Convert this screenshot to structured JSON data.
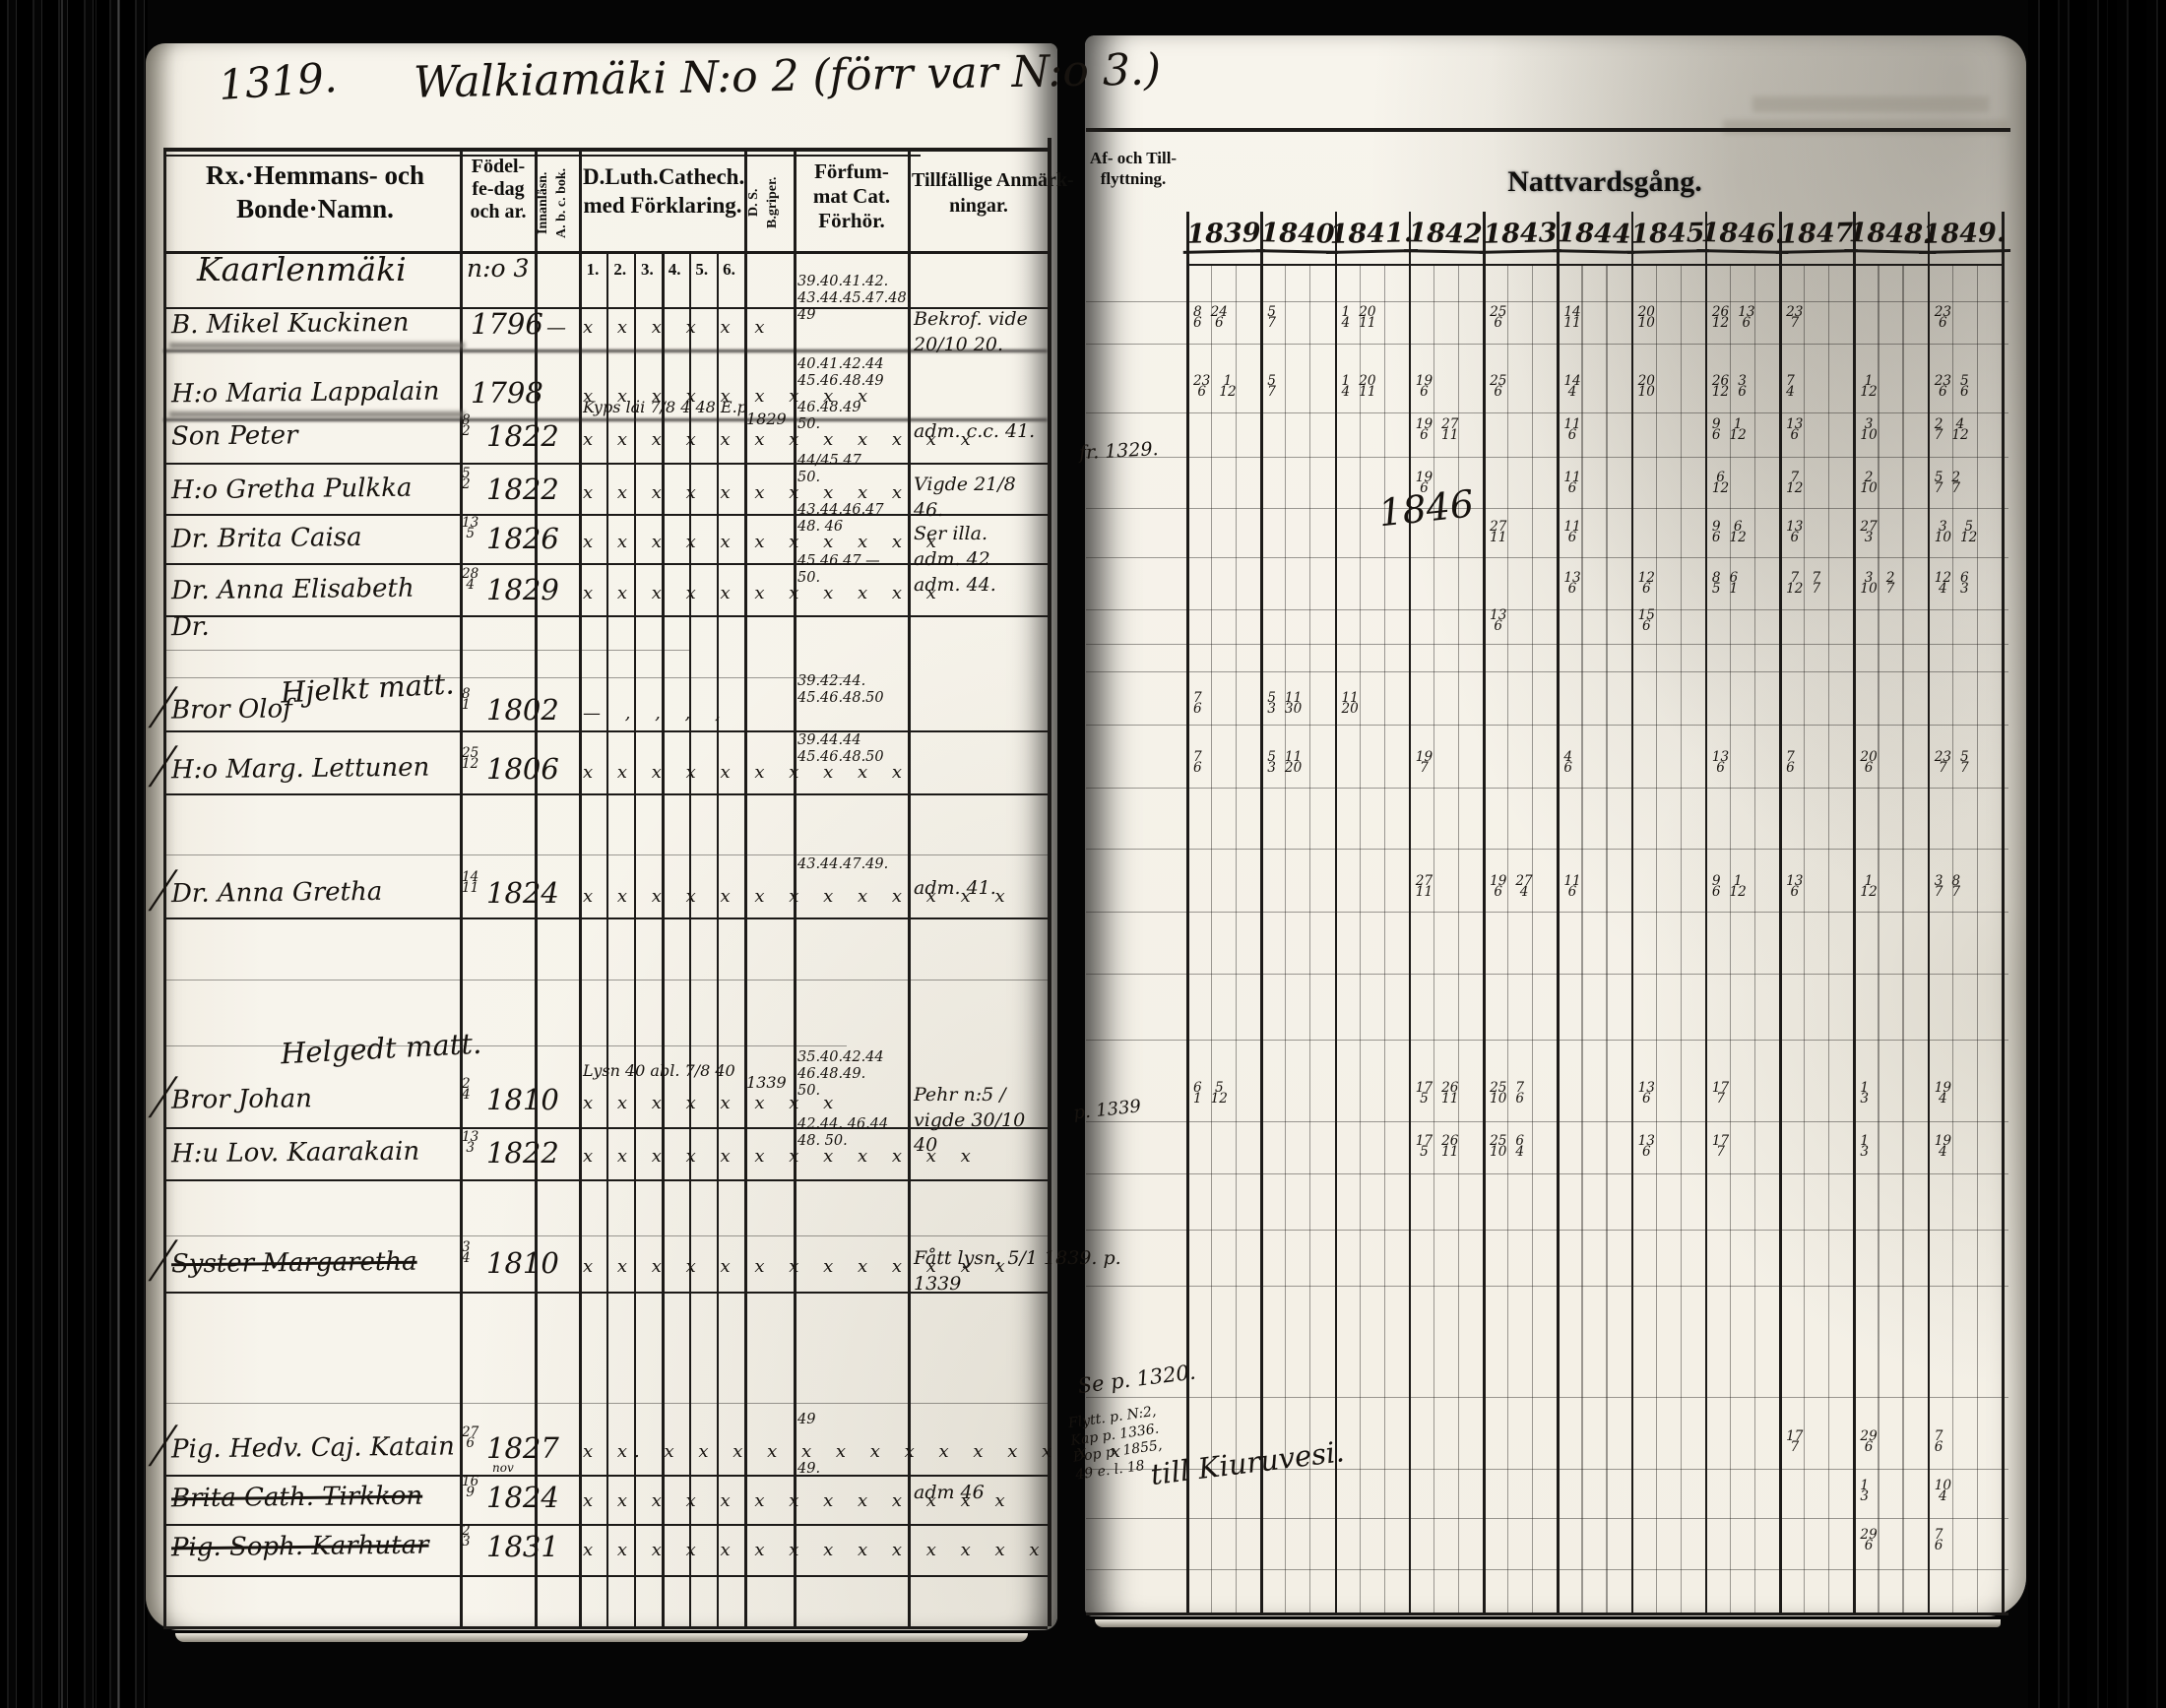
{
  "page": {
    "left_page_number": "1319.",
    "title": "Walkiamäki N:o 2 (förr var N:o 3.)"
  },
  "left_table": {
    "headers": {
      "names_line1": "Rx.·Hemmans- och",
      "names_line2": "Bonde·Namn.",
      "birth_line1": "Födel-",
      "birth_line2": "fe-dag",
      "birth_line3": "och ar.",
      "abc_vert1": "Innanläsn.",
      "abc_vert2": "A. b. c. bok.",
      "cat_line1": "D.Luth.Cathech.",
      "cat_line2": "med Förklaring.",
      "begriper_vert1": "D. S.",
      "begriper_vert2": "B.griper.",
      "forsummat_line1": "Förfum-",
      "forsummat_line2": "mat Cat.",
      "forsummat_line3": "Förhör.",
      "anm_line1": "Tillfällige Anmärk-",
      "anm_line2": "ningar.",
      "cat_subs": [
        "1.",
        "2.",
        "3.",
        "4.",
        "5.",
        "6."
      ]
    }
  },
  "right_table": {
    "flytt_line1": "Af- och Till-",
    "flytt_line2": "flyttning.",
    "nattvard": "Nattvardsgång.",
    "years": [
      "1839",
      "1840",
      "1841.",
      "1842",
      "1843",
      "1844",
      "1845",
      "1846.",
      "1847",
      "1848.",
      "1849."
    ]
  },
  "rows": [
    {
      "id": "kaarlenmaki",
      "type": "section-row",
      "name": "Kaarlenmäki",
      "birth_note": "n:o 3"
    },
    {
      "id": "mikel",
      "name": "B. Mikel Kuckinen",
      "smudge": true,
      "birth": {
        "year": "1796"
      },
      "abc": "—",
      "marks": "x x x x x   x",
      "fors": [
        "39.40.41.42.",
        "43.44.45.47.48.",
        "49"
      ],
      "anm": [
        "Bekrof. vide 20/10 20."
      ],
      "natt": {
        "0": "8/6 24/6",
        "1": "5/7",
        "2": "1/4 20/11",
        "4": "25/6",
        "5": "14/11",
        "6": "20/10",
        "7": "26/12 13/6",
        "8": "23/7",
        "10": "23/6"
      }
    },
    {
      "id": "maria",
      "name": "H:o Maria Lappalain",
      "smudge": true,
      "birth": {
        "year": "1798"
      },
      "marks": "x x  x x x x x  x x",
      "fors": [
        "40.41.42.44",
        "45.46.48.49"
      ],
      "natt": {
        "0": "23/6 1/12",
        "1": "5/7",
        "2": "1/4 20/11",
        "3": "19/6",
        "4": "25/6",
        "5": "14/4",
        "6": "20/10",
        "7": "26/12 3/6",
        "8": "7/4",
        "9": "1/12",
        "10": "23/6 5/6"
      }
    },
    {
      "id": "peter",
      "name": "Son Peter",
      "birth": {
        "frac": "8/2",
        "year": "1822"
      },
      "bs": "1829",
      "cat_script": "Kyps läi 7/8 4 48 E.p",
      "marks": "x x  x x  x x  x x  x x  x x",
      "fors": [
        "46.48.49",
        "50."
      ],
      "anm": [
        "adm. c.c. 41."
      ],
      "natt": {
        "3": "19/6 27/11",
        "5": "11/6",
        "7": "9/6 1/12",
        "8": "13/6",
        "9": "3/10",
        "10": "2/7 4/12"
      }
    },
    {
      "id": "gretha",
      "name": "H:o Gretha Pulkka",
      "birth": {
        "frac": "5/2",
        "year": "1822"
      },
      "marks": "x x x x x x x x x x",
      "fors": [
        "44/45.47",
        "50."
      ],
      "anm": [
        "Vigde 21/8 46."
      ],
      "natt": {
        "3": "19/6",
        "5": "11/6",
        "7": "6/12",
        "8": "7/12",
        "9": "2/10",
        "10": "5/7 2/7"
      }
    },
    {
      "id": "brita",
      "name": "Dr. Brita Caisa",
      "birth": {
        "frac": "13/5",
        "year": "1826"
      },
      "marks": "x x x x x x x x x x x",
      "fors": [
        "43.44.46.47",
        "48. 46"
      ],
      "anm": [
        "Ser illa.",
        "adm. 42"
      ],
      "natt": {
        "4": "27/11",
        "5": "11/6",
        "7": "9/6 6/12",
        "8": "13/6",
        "9": "27/3",
        "10": "3/10 5/12"
      }
    },
    {
      "id": "annaelis",
      "name": "Dr. Anna Elisabeth",
      "birth": {
        "frac": "28/4",
        "year": "1829"
      },
      "marks": "x x x x x x x x x x x",
      "fors": [
        "45.46.47 —",
        "50."
      ],
      "anm": [
        "adm. 44."
      ],
      "natt": {
        "5": "13/6",
        "6": "12/6",
        "7": "8/5 6/1",
        "8": "7/12 7/7",
        "9": "3/10 2/7",
        "10": "12/4 6/3"
      }
    },
    {
      "id": "dr-empty",
      "name": "Dr.",
      "natt": {
        "4": "13/6",
        "6": "15/6"
      }
    },
    {
      "id": "sec-hjelkt",
      "type": "section-script",
      "script": "Hjelkt matt."
    },
    {
      "id": "brorolof",
      "check": true,
      "name": "Bror Olof",
      "birth": {
        "frac": "8/1",
        "year": "1802"
      },
      "marks": "—  ,  ,  ,  ,",
      "fors": [
        "39.42.44.",
        "45.46.48.50"
      ],
      "natt": {
        "0": "7/6",
        "1": "5/3 11/30",
        "2": "11/20"
      }
    },
    {
      "id": "lettunen",
      "check": true,
      "name": "H:o Marg. Lettunen",
      "birth": {
        "frac": "25/12",
        "year": "1806"
      },
      "marks": "x  x x x  x x  x x  x x",
      "fors": [
        "39.44.44",
        "45.46.48.50"
      ],
      "natt": {
        "0": "7/6",
        "1": "5/3 11/20",
        "3": "19/7",
        "5": "4/6",
        "7": "13/6",
        "8": "7/6",
        "9": "20/6",
        "10": "23/7 5/7"
      }
    },
    {
      "id": "annagretha",
      "check": true,
      "name": "Dr. Anna Gretha",
      "birth": {
        "frac": "14/11",
        "year": "1824"
      },
      "marks": "x x  x x x  x x x x x x  x x",
      "fors": [
        "43.44.47.49."
      ],
      "anm": [
        "adm. 41."
      ],
      "natt": {
        "3": "27/11",
        "4": "19/6 27/4",
        "5": "11/6",
        "7": "9/6 1/12",
        "8": "13/6",
        "9": "1/12",
        "10": "3/7 8/7"
      }
    },
    {
      "id": "sec-helgedt",
      "type": "section-script",
      "script": "Helgedt matt."
    },
    {
      "id": "brorjohan",
      "check": true,
      "name": "Bror Johan",
      "birth": {
        "frac": "2/4",
        "year": "1810"
      },
      "cat_script": "Lysn 40 abl. 7/8 40",
      "bs": "1339",
      "marks": "x x  x  x  x  x  x  x",
      "fors": [
        "35.40.42.44",
        "46.48.49.",
        "50."
      ],
      "anm": [
        "Pehr n:5 /",
        "vigde 30/10 40"
      ],
      "natt": {
        "0": "6/1 5/12",
        "3": "17/5 26/11",
        "4": "25/10 7/6",
        "6": "13/6",
        "7": "17/7",
        "9": "1/3",
        "10": "19/4"
      }
    },
    {
      "id": "kaarakain",
      "name": "H:u Lov. Kaarakain",
      "birth": {
        "frac": "13/3",
        "year": "1822"
      },
      "marks": "x x  x x  x x  x x  x x  x x",
      "fors": [
        "42.44. 46.44",
        "48. 50."
      ],
      "natt": {
        "3": "17/5 26/11",
        "4": "25/10 6/4",
        "6": "13/6",
        "7": "17/7",
        "9": "1/3",
        "10": "19/4"
      }
    },
    {
      "id": "margaretha",
      "check": true,
      "struck": true,
      "name": "Syster Margaretha",
      "birth": {
        "frac": "3/4",
        "year": "1810"
      },
      "marks": "x x  x x x x x x x x x x x",
      "anm": [
        "Fått lysn. 5/1 1839. p. 1339"
      ]
    },
    {
      "id": "katain",
      "check": true,
      "name": "Pig. Hedv. Caj. Katain",
      "birth": {
        "frac": "27/6",
        "year": "1827"
      },
      "marks": "x x. x x x x x x  x x x x x x  x x",
      "fors": [
        "49"
      ],
      "natt": {
        "8": "17/7",
        "9": "29/6",
        "10": "7/6"
      }
    },
    {
      "id": "tirkkon",
      "struck": true,
      "name": "Brita Cath. Tirkkon",
      "birth": {
        "frac": "16/9",
        "year": "1824"
      },
      "birth_note_small": "nov",
      "marks": "x  x x x x x x x x  x x x x",
      "fors": [
        "49."
      ],
      "anm": [
        "adm 46"
      ],
      "natt": {
        "9": "1/3",
        "10": "10/4"
      }
    },
    {
      "id": "karhutar",
      "struck": true,
      "name": "Pig. Soph. Karhutar",
      "birth": {
        "frac": "2/3",
        "year": "1831"
      },
      "marks": "x x  x x x x x x x x x  x x x",
      "natt": {
        "9": "29/6",
        "10": "7/6"
      }
    }
  ],
  "annotations": [
    {
      "id": "big1846",
      "text": "1846"
    },
    {
      "id": "fr1329",
      "text": "fr. 1329."
    },
    {
      "id": "p1339",
      "text": "p. 1339"
    },
    {
      "id": "sep1320",
      "text": "Se p. 1320."
    },
    {
      "id": "flyttblock",
      "lines": [
        "Flytt. p. N:2,",
        "Kap p. 1336.",
        "Dop p. 1855,",
        "49 e. l. 18"
      ]
    },
    {
      "id": "kiuruvesi",
      "text": "till Kiuruvesi."
    }
  ]
}
